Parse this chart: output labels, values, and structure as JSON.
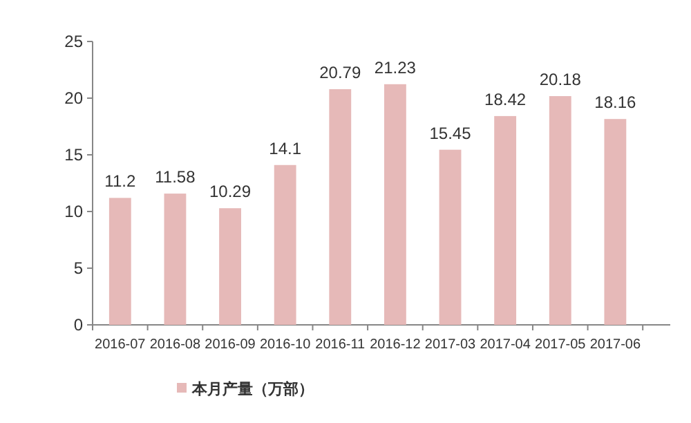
{
  "chart_data": {
    "type": "bar",
    "categories": [
      "2016-07",
      "2016-08",
      "2016-09",
      "2016-10",
      "2016-11",
      "2016-12",
      "2017-03",
      "2017-04",
      "2017-05",
      "2017-06"
    ],
    "series": [
      {
        "name": "本月产量（万部）",
        "color": "#e6b9b8",
        "values": [
          11.2,
          11.58,
          10.29,
          14.1,
          20.79,
          21.23,
          15.45,
          18.42,
          20.18,
          18.16
        ]
      }
    ],
    "ylim": [
      0,
      25
    ],
    "yticks": [
      0,
      5,
      10,
      15,
      20,
      25
    ],
    "data_labels": true,
    "grid": false,
    "legend": "bottom left"
  }
}
